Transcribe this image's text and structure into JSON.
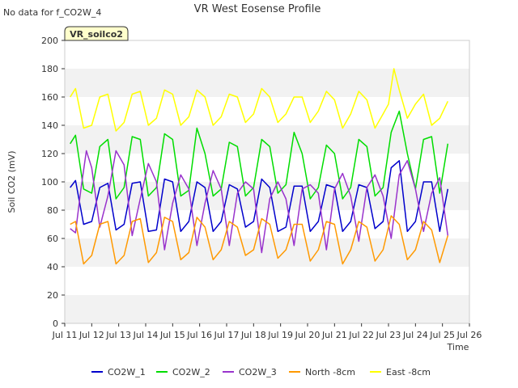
{
  "nodata_note": "No data for f_CO2W_4",
  "site_badge": "VR_soilco2",
  "chart_data": {
    "type": "line",
    "title": "VR West Eosense Profile",
    "xlabel": "Time",
    "ylabel": "Soil CO2 (mV)",
    "xlim": [
      11,
      26
    ],
    "ylim": [
      0,
      200
    ],
    "x_ticks": [
      11,
      12,
      13,
      14,
      15,
      16,
      17,
      18,
      19,
      20,
      21,
      22,
      23,
      24,
      25,
      26
    ],
    "x_tick_labels": [
      "Jul 11",
      "Jul 12",
      "Jul 13",
      "Jul 14",
      "Jul 15",
      "Jul 16",
      "Jul 17",
      "Jul 18",
      "Jul 19",
      "Jul 20",
      "Jul 21",
      "Jul 22",
      "Jul 23",
      "Jul 24",
      "Jul 25",
      "Jul 26"
    ],
    "y_ticks": [
      0,
      20,
      40,
      60,
      80,
      100,
      120,
      140,
      160,
      180,
      200
    ],
    "grid": "horizontal bands",
    "legend_position": "bottom",
    "series": [
      {
        "name": "CO2W_1",
        "color": "#0000cc",
        "x": [
          11.2,
          11.4,
          11.7,
          12.0,
          12.3,
          12.6,
          12.9,
          13.2,
          13.5,
          13.8,
          14.1,
          14.4,
          14.7,
          15.0,
          15.3,
          15.6,
          15.9,
          16.2,
          16.5,
          16.8,
          17.1,
          17.4,
          17.7,
          18.0,
          18.3,
          18.6,
          18.9,
          19.2,
          19.5,
          19.8,
          20.1,
          20.4,
          20.7,
          21.0,
          21.3,
          21.6,
          21.9,
          22.2,
          22.5,
          22.8,
          23.1,
          23.4,
          23.7,
          24.0,
          24.3,
          24.6,
          24.9,
          25.2
        ],
        "y": [
          96,
          101,
          70,
          72,
          96,
          99,
          66,
          70,
          99,
          100,
          65,
          66,
          102,
          100,
          65,
          72,
          100,
          96,
          65,
          72,
          98,
          95,
          68,
          72,
          102,
          96,
          65,
          68,
          97,
          97,
          65,
          72,
          98,
          96,
          65,
          72,
          98,
          96,
          67,
          72,
          110,
          115,
          65,
          72,
          100,
          100,
          65,
          95
        ]
      },
      {
        "name": "CO2W_2",
        "color": "#00dd00",
        "x": [
          11.2,
          11.4,
          11.7,
          12.0,
          12.3,
          12.6,
          12.9,
          13.2,
          13.5,
          13.8,
          14.1,
          14.4,
          14.7,
          15.0,
          15.3,
          15.6,
          15.9,
          16.2,
          16.5,
          16.8,
          17.1,
          17.4,
          17.7,
          18.0,
          18.3,
          18.6,
          18.9,
          19.2,
          19.5,
          19.8,
          20.1,
          20.4,
          20.7,
          21.0,
          21.3,
          21.6,
          21.9,
          22.2,
          22.5,
          22.8,
          23.1,
          23.4,
          23.7,
          24.0,
          24.3,
          24.6,
          24.9,
          25.2
        ],
        "y": [
          127,
          133,
          95,
          92,
          125,
          130,
          88,
          96,
          132,
          130,
          90,
          96,
          134,
          130,
          90,
          94,
          138,
          120,
          90,
          95,
          128,
          125,
          90,
          96,
          130,
          125,
          92,
          98,
          135,
          120,
          88,
          96,
          126,
          120,
          88,
          96,
          130,
          125,
          90,
          96,
          135,
          150,
          120,
          95,
          130,
          132,
          92,
          127
        ]
      },
      {
        "name": "CO2W_3",
        "color": "#9933cc",
        "x": [
          11.2,
          11.4,
          11.6,
          11.8,
          12.0,
          12.3,
          12.6,
          12.9,
          13.2,
          13.5,
          13.8,
          14.1,
          14.4,
          14.7,
          15.0,
          15.3,
          15.6,
          15.9,
          16.2,
          16.5,
          16.8,
          17.1,
          17.4,
          17.7,
          18.0,
          18.3,
          18.6,
          18.9,
          19.2,
          19.5,
          19.8,
          20.1,
          20.4,
          20.7,
          21.0,
          21.3,
          21.6,
          21.9,
          22.2,
          22.5,
          22.8,
          23.1,
          23.4,
          23.7,
          24.0,
          24.3,
          24.6,
          24.9,
          25.2
        ],
        "y": [
          67,
          64,
          95,
          122,
          110,
          68,
          90,
          122,
          112,
          62,
          88,
          113,
          100,
          52,
          85,
          105,
          95,
          55,
          85,
          108,
          95,
          55,
          92,
          100,
          95,
          50,
          88,
          100,
          88,
          55,
          95,
          98,
          92,
          52,
          95,
          106,
          90,
          58,
          96,
          105,
          90,
          60,
          105,
          115,
          95,
          65,
          92,
          103,
          62
        ]
      },
      {
        "name": "North -8cm",
        "color": "#ff9900",
        "x": [
          11.2,
          11.4,
          11.7,
          12.0,
          12.3,
          12.6,
          12.9,
          13.2,
          13.5,
          13.8,
          14.1,
          14.4,
          14.7,
          15.0,
          15.3,
          15.6,
          15.9,
          16.2,
          16.5,
          16.8,
          17.1,
          17.4,
          17.7,
          18.0,
          18.3,
          18.6,
          18.9,
          19.2,
          19.5,
          19.8,
          20.1,
          20.4,
          20.7,
          21.0,
          21.3,
          21.6,
          21.9,
          22.2,
          22.5,
          22.8,
          23.1,
          23.4,
          23.7,
          24.0,
          24.3,
          24.6,
          24.9,
          25.2
        ],
        "y": [
          70,
          72,
          42,
          48,
          70,
          72,
          42,
          48,
          72,
          74,
          43,
          50,
          75,
          72,
          45,
          50,
          75,
          68,
          45,
          52,
          72,
          68,
          48,
          52,
          74,
          70,
          46,
          52,
          70,
          70,
          44,
          52,
          72,
          70,
          42,
          52,
          72,
          68,
          44,
          52,
          76,
          70,
          45,
          52,
          72,
          66,
          43,
          62
        ]
      },
      {
        "name": "East -8cm",
        "color": "#ffff00",
        "x": [
          11.2,
          11.4,
          11.7,
          12.0,
          12.3,
          12.6,
          12.9,
          13.2,
          13.5,
          13.8,
          14.1,
          14.4,
          14.7,
          15.0,
          15.3,
          15.6,
          15.9,
          16.2,
          16.5,
          16.8,
          17.1,
          17.4,
          17.7,
          18.0,
          18.3,
          18.6,
          18.9,
          19.2,
          19.5,
          19.8,
          20.1,
          20.4,
          20.7,
          21.0,
          21.3,
          21.6,
          21.9,
          22.2,
          22.5,
          22.8,
          23.0,
          23.2,
          23.4,
          23.7,
          24.0,
          24.3,
          24.6,
          24.9,
          25.2
        ],
        "y": [
          160,
          166,
          138,
          140,
          160,
          162,
          136,
          142,
          162,
          164,
          140,
          145,
          165,
          162,
          140,
          146,
          165,
          160,
          140,
          146,
          162,
          160,
          142,
          148,
          166,
          160,
          142,
          148,
          160,
          160,
          142,
          150,
          164,
          158,
          138,
          148,
          164,
          158,
          138,
          148,
          155,
          180,
          165,
          145,
          155,
          162,
          140,
          145,
          157
        ]
      }
    ]
  }
}
